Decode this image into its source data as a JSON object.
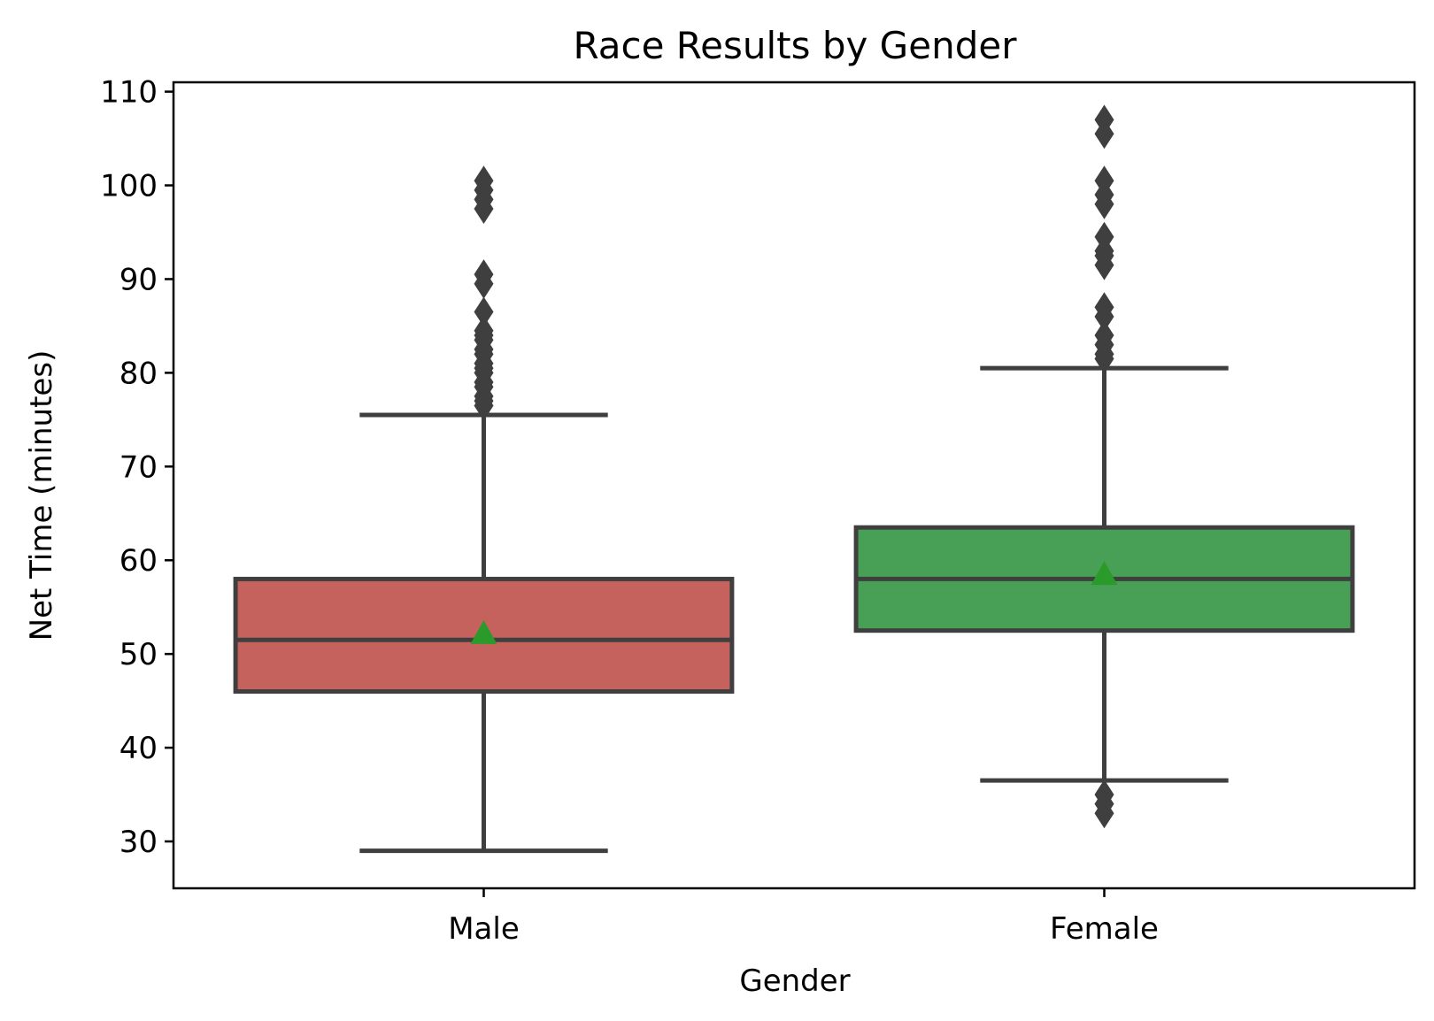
{
  "chart_data": {
    "type": "box",
    "title": "Race Results by Gender",
    "xlabel": "Gender",
    "ylabel": "Net Time (minutes)",
    "ylim": [
      25,
      111
    ],
    "yticks": [
      30,
      40,
      50,
      60,
      70,
      80,
      90,
      100,
      110
    ],
    "grid": false,
    "categories": [
      "Male",
      "Female"
    ],
    "series": [
      {
        "name": "Male",
        "color": "#c6625d",
        "whisker_low": 29,
        "q1": 46,
        "median": 51.5,
        "q3": 58,
        "whisker_high": 75.5,
        "mean": 52.2,
        "outliers": [
          76.5,
          77,
          77.5,
          78.5,
          79,
          80,
          80.5,
          81,
          82,
          82.5,
          83.5,
          84,
          84.5,
          86.5,
          89.5,
          90.5,
          97.5,
          98.5,
          99.5,
          100.5
        ]
      },
      {
        "name": "Female",
        "color": "#48a056",
        "whisker_low": 36.5,
        "q1": 52.5,
        "median": 58,
        "q3": 63.5,
        "whisker_high": 80.5,
        "mean": 58.5,
        "outliers": [
          33,
          34,
          35,
          81.5,
          82,
          83,
          84,
          86,
          87,
          91.5,
          92.5,
          93,
          94.5,
          98,
          99,
          100.5,
          105.5,
          107
        ]
      }
    ],
    "mean_marker_color": "#2a9a2a",
    "line_color": "#3f3f3f"
  }
}
